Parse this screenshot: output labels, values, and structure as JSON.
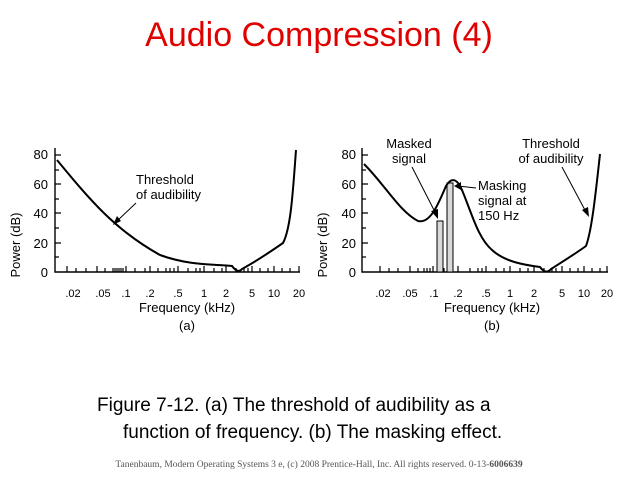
{
  "slide": {
    "title": "Audio Compression (4)"
  },
  "figure_a": {
    "ylabel": "Power (dB)",
    "xlabel": "Frequency (kHz)",
    "sublabel": "(a)",
    "yticks": [
      "80",
      "60",
      "40",
      "20",
      "0"
    ],
    "xticks": [
      ".02",
      ".05",
      ".1",
      ".2",
      ".5",
      "1",
      "2",
      "5",
      "10",
      "20"
    ],
    "annotation": [
      "Threshold",
      "of audibility"
    ]
  },
  "figure_b": {
    "ylabel": "Power (dB)",
    "xlabel": "Frequency (kHz)",
    "sublabel": "(b)",
    "yticks": [
      "80",
      "60",
      "40",
      "20",
      "0"
    ],
    "xticks": [
      ".02",
      ".05",
      ".1",
      ".2",
      ".5",
      "1",
      "2",
      "5",
      "10",
      "20"
    ],
    "masked_label": [
      "Masked",
      "signal"
    ],
    "masking_label": [
      "Masking",
      "signal at",
      "150 Hz"
    ],
    "threshold_label": [
      "Threshold",
      "of audibility"
    ]
  },
  "caption": {
    "line1": "Figure 7-12. (a) The threshold of audibility as a",
    "line2": "function of frequency. (b) The masking effect."
  },
  "footer": {
    "text": "Tanenbaum, Modern Operating Systems 3 e, (c) 2008 Prentice-Hall, Inc. All rights reserved. 0-13-",
    "isbn": "6006639"
  },
  "colors": {
    "title": "#e00000",
    "ink": "#000000",
    "bar_fill": "#d9d9d9"
  }
}
